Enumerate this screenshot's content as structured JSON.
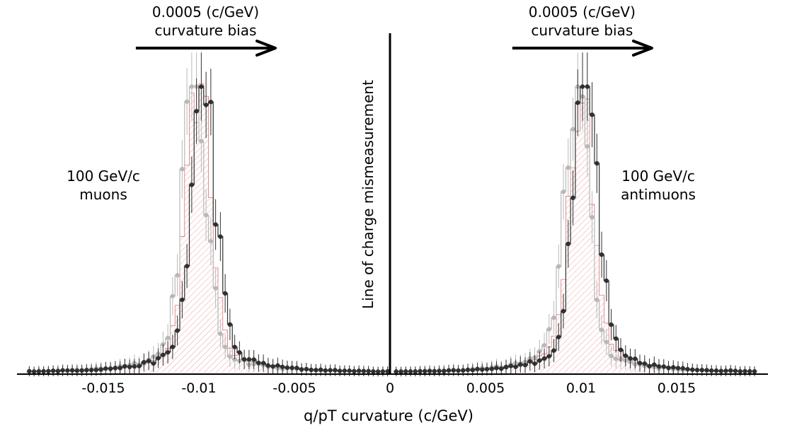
{
  "chart_data": {
    "type": "histogram",
    "xlabel": "q/pT curvature (c/GeV)",
    "xlim": [
      -0.0195,
      0.0195
    ],
    "x_ticks": [
      {
        "value": -0.015,
        "label": "-0.015"
      },
      {
        "value": -0.01,
        "label": "-0.01"
      },
      {
        "value": -0.005,
        "label": "-0.005"
      },
      {
        "value": 0,
        "label": "0"
      },
      {
        "value": 0.005,
        "label": "0.005"
      },
      {
        "value": 0.01,
        "label": "0.01"
      },
      {
        "value": 0.015,
        "label": "0.015"
      }
    ],
    "center_line": {
      "value": 0,
      "label": "Line of charge mismeasurement"
    },
    "peaks": [
      {
        "label_line1": "100 GeV/c",
        "label_line2": "muons",
        "bias_line1": "0.0005 (c/GeV)",
        "bias_line2": "curvature bias",
        "arrow_from": -0.0133,
        "arrow_to": -0.006,
        "center": -0.01,
        "gray_shift": -0.00025,
        "black_shift": 0.00025
      },
      {
        "label_line1": "100 GeV/c",
        "label_line2": "antimuons",
        "bias_line1": "0.0005 (c/GeV)",
        "bias_line2": "curvature bias",
        "arrow_from": 0.0064,
        "arrow_to": 0.0137,
        "center": 0.01,
        "gray_shift": -0.00025,
        "black_shift": 0.00025
      }
    ],
    "series": [
      {
        "name": "",
        "style": "red hatched histogram",
        "color": "#e07070"
      },
      {
        "name": "",
        "style": "gray markers",
        "color": "#b8b8b8"
      },
      {
        "name": "",
        "style": "black markers",
        "color": "#303030"
      }
    ],
    "shape": {
      "bin_width": 0.00025,
      "core_width": 0.0006,
      "tail_width": 0.0017,
      "tail_fraction": 0.13,
      "peak_rel": 1.0
    },
    "y_axis_shown": false,
    "grid": false,
    "legend": "none"
  }
}
